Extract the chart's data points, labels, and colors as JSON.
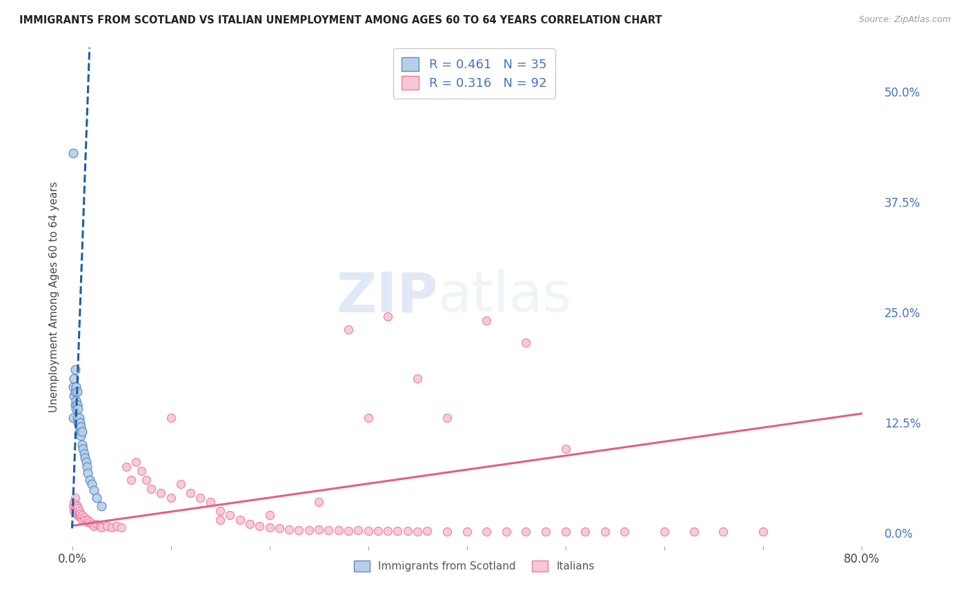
{
  "title": "IMMIGRANTS FROM SCOTLAND VS ITALIAN UNEMPLOYMENT AMONG AGES 60 TO 64 YEARS CORRELATION CHART",
  "source": "Source: ZipAtlas.com",
  "ylabel": "Unemployment Among Ages 60 to 64 years",
  "ytick_labels": [
    "0.0%",
    "12.5%",
    "25.0%",
    "37.5%",
    "50.0%"
  ],
  "ytick_values": [
    0.0,
    0.125,
    0.25,
    0.375,
    0.5
  ],
  "xtick_values": [
    0.0,
    0.1,
    0.2,
    0.3,
    0.4,
    0.5,
    0.6,
    0.7,
    0.8
  ],
  "xtick_labels": [
    "0.0%",
    "",
    "",
    "",
    "",
    "",
    "",
    "",
    "80.0%"
  ],
  "xlim": [
    -0.005,
    0.82
  ],
  "ylim": [
    -0.015,
    0.55
  ],
  "scotland_color": "#b8cfe8",
  "scotland_edge": "#5b8ec4",
  "italian_color": "#f9c6d4",
  "italian_edge": "#e87fa0",
  "trendline_scotland_color": "#1a5ea8",
  "trendline_italian_color": "#e06080",
  "R_scotland": 0.461,
  "N_scotland": 35,
  "R_italian": 0.316,
  "N_italian": 92,
  "legend_labels": [
    "Immigrants from Scotland",
    "Italians"
  ],
  "watermark_zip": "ZIP",
  "watermark_atlas": "atlas",
  "background_color": "#ffffff",
  "grid_color": "#d0d0d0",
  "title_color": "#222222",
  "axis_label_color": "#444444",
  "tick_label_color_right": "#4472c4",
  "tick_label_color_x": "#444444",
  "scotland_x": [
    0.001,
    0.001,
    0.002,
    0.002,
    0.003,
    0.003,
    0.003,
    0.004,
    0.004,
    0.004,
    0.005,
    0.005,
    0.005,
    0.006,
    0.006,
    0.007,
    0.007,
    0.008,
    0.008,
    0.009,
    0.009,
    0.01,
    0.01,
    0.011,
    0.012,
    0.013,
    0.014,
    0.015,
    0.016,
    0.018,
    0.02,
    0.022,
    0.025,
    0.03,
    0.001
  ],
  "scotland_y": [
    0.13,
    0.165,
    0.155,
    0.175,
    0.145,
    0.16,
    0.185,
    0.14,
    0.15,
    0.165,
    0.13,
    0.145,
    0.16,
    0.125,
    0.14,
    0.12,
    0.13,
    0.115,
    0.125,
    0.11,
    0.12,
    0.1,
    0.115,
    0.095,
    0.09,
    0.085,
    0.08,
    0.075,
    0.068,
    0.06,
    0.055,
    0.048,
    0.04,
    0.03,
    0.43
  ],
  "italy_scatter_x": [
    0.001,
    0.002,
    0.002,
    0.003,
    0.003,
    0.004,
    0.004,
    0.005,
    0.005,
    0.006,
    0.006,
    0.007,
    0.007,
    0.008,
    0.008,
    0.009,
    0.01,
    0.01,
    0.012,
    0.013,
    0.015,
    0.016,
    0.018,
    0.02,
    0.022,
    0.025,
    0.028,
    0.03,
    0.035,
    0.04,
    0.045,
    0.05,
    0.055,
    0.06,
    0.065,
    0.07,
    0.075,
    0.08,
    0.09,
    0.1,
    0.11,
    0.12,
    0.13,
    0.14,
    0.15,
    0.16,
    0.17,
    0.18,
    0.19,
    0.2,
    0.21,
    0.22,
    0.23,
    0.24,
    0.25,
    0.26,
    0.27,
    0.28,
    0.29,
    0.3,
    0.31,
    0.32,
    0.33,
    0.34,
    0.35,
    0.36,
    0.38,
    0.4,
    0.42,
    0.44,
    0.46,
    0.48,
    0.5,
    0.52,
    0.54,
    0.56,
    0.6,
    0.63,
    0.66,
    0.7,
    0.38,
    0.46,
    0.35,
    0.28,
    0.32,
    0.42,
    0.5,
    0.3,
    0.25,
    0.2,
    0.15,
    0.1
  ],
  "italy_scatter_y": [
    0.03,
    0.025,
    0.035,
    0.028,
    0.04,
    0.025,
    0.032,
    0.02,
    0.03,
    0.022,
    0.028,
    0.02,
    0.025,
    0.018,
    0.022,
    0.018,
    0.015,
    0.02,
    0.018,
    0.015,
    0.012,
    0.015,
    0.012,
    0.01,
    0.008,
    0.01,
    0.008,
    0.006,
    0.008,
    0.006,
    0.008,
    0.006,
    0.075,
    0.06,
    0.08,
    0.07,
    0.06,
    0.05,
    0.045,
    0.04,
    0.055,
    0.045,
    0.04,
    0.035,
    0.025,
    0.02,
    0.015,
    0.01,
    0.008,
    0.006,
    0.005,
    0.004,
    0.003,
    0.003,
    0.004,
    0.003,
    0.003,
    0.002,
    0.003,
    0.002,
    0.002,
    0.002,
    0.002,
    0.002,
    0.001,
    0.002,
    0.001,
    0.001,
    0.001,
    0.001,
    0.001,
    0.001,
    0.001,
    0.001,
    0.001,
    0.001,
    0.001,
    0.001,
    0.001,
    0.001,
    0.13,
    0.215,
    0.175,
    0.23,
    0.245,
    0.24,
    0.095,
    0.13,
    0.035,
    0.02,
    0.015,
    0.13
  ]
}
